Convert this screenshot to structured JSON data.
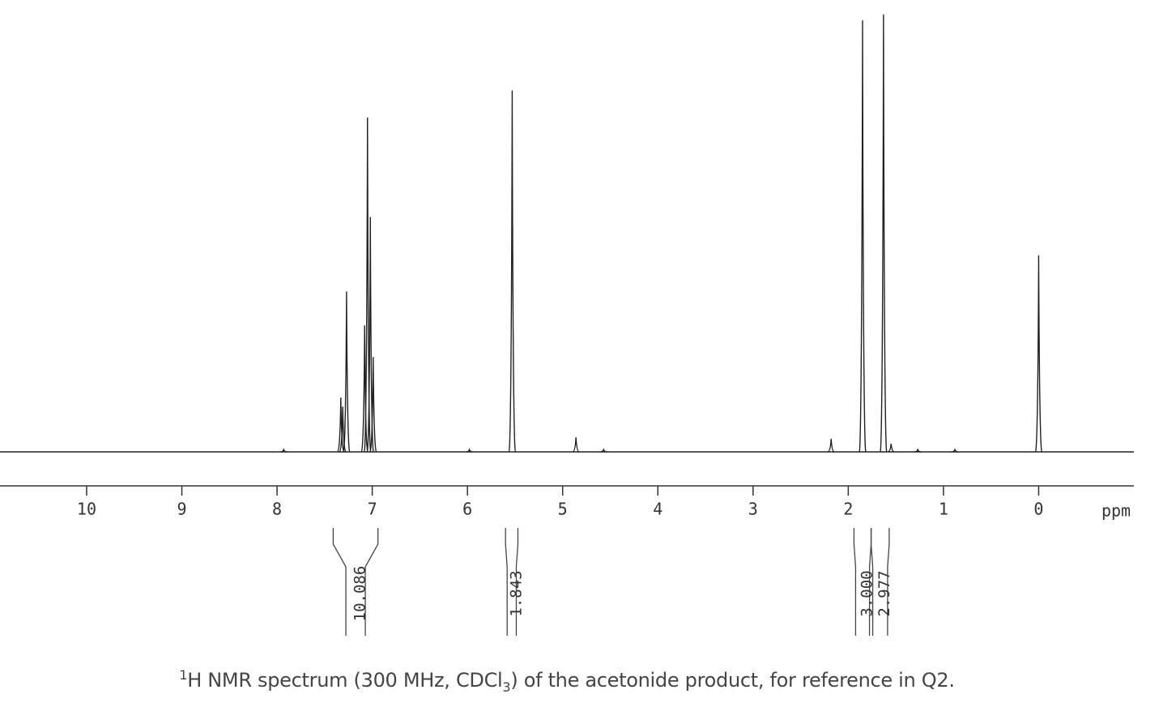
{
  "chart_data": {
    "type": "spectrum",
    "x_label": "ppm",
    "xlim": [
      10.91,
      -1.0
    ],
    "xticks": [
      10,
      9,
      8,
      7,
      6,
      5,
      4,
      3,
      2,
      1,
      0
    ],
    "ylim": [
      0,
      100
    ],
    "color": "#222222",
    "peaks": {
      "x": [
        7.93,
        7.33,
        7.31,
        7.27,
        7.08,
        7.05,
        7.02,
        6.99,
        5.98,
        5.53,
        4.86,
        4.57,
        2.18,
        1.85,
        1.63,
        1.55,
        1.27,
        0.88,
        0.0
      ],
      "values": [
        0.5,
        12,
        10,
        35.5,
        28,
        74,
        52,
        21,
        0.5,
        80,
        3.2,
        0.5,
        2.9,
        95.5,
        96.8,
        1.8,
        0.5,
        0.5,
        43.5
      ]
    },
    "integrals": {
      "ranges": [
        [
          7.41,
          6.94
        ],
        [
          5.6,
          5.47
        ],
        [
          1.94,
          1.76
        ],
        [
          1.76,
          1.57
        ]
      ],
      "values": [
        10.086,
        1.843,
        3,
        2.977
      ],
      "value_labels": [
        "10.086",
        "1.843",
        "3.000",
        "2.977"
      ]
    },
    "caption": {
      "sup": "1",
      "part1": "H NMR spectrum (300 MHz, CDCl",
      "sub": "3",
      "part2": ") of the acetonide product, for reference in Q2."
    }
  }
}
